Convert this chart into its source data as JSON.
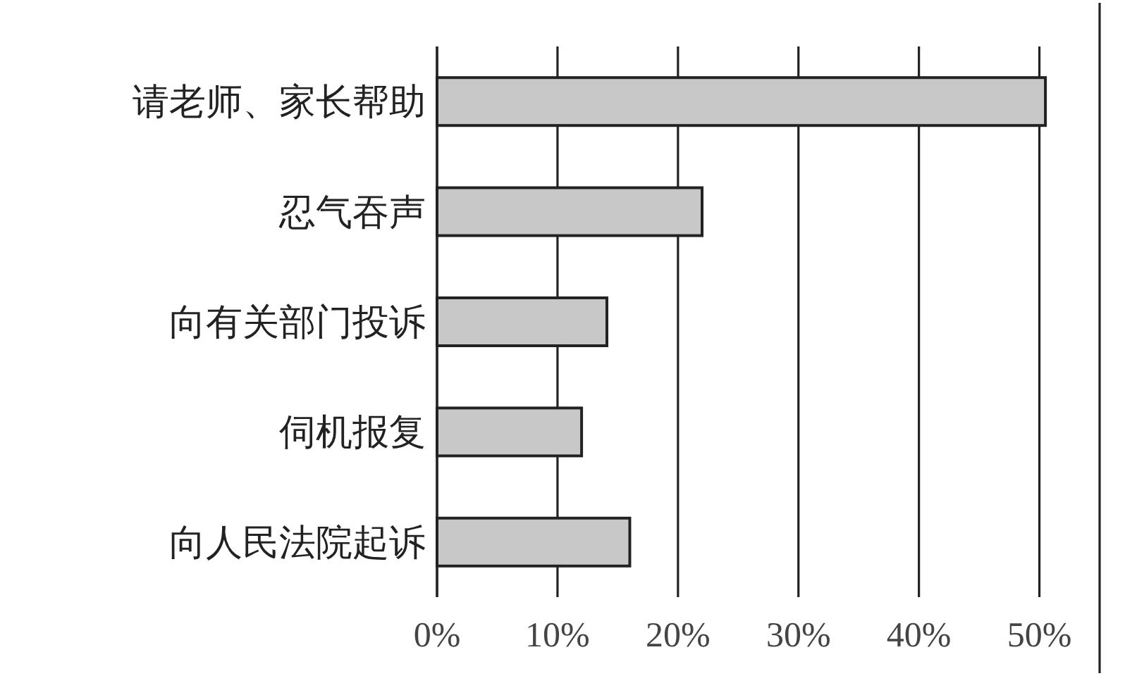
{
  "chart_data": {
    "type": "bar",
    "orientation": "horizontal",
    "categories": [
      "请老师、家长帮助",
      "忍气吞声",
      "向有关部门投诉",
      "伺机报复",
      "向人民法院起诉"
    ],
    "values": [
      50.5,
      22.0,
      14.1,
      12.0,
      16.0
    ],
    "color": "#c8c8c8",
    "xlim": [
      0,
      55
    ],
    "xticks": [
      {
        "value": 0,
        "label": "0%"
      },
      {
        "value": 10,
        "label": "10%"
      },
      {
        "value": 20,
        "label": "20%"
      },
      {
        "value": 30,
        "label": "30%"
      },
      {
        "value": 40,
        "label": "40%"
      },
      {
        "value": 50,
        "label": "50%"
      }
    ],
    "grid": "x"
  }
}
